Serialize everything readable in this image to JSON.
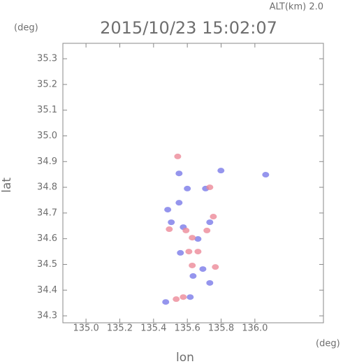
{
  "chart_data": {
    "type": "scatter",
    "title": "2015/10/23 15:02:07",
    "subtitle": "ALT(km) 2.0",
    "x_unit": "(deg)",
    "y_unit": "(deg)",
    "xlabel": "lon",
    "ylabel": "lat",
    "xlim": [
      134.863,
      136.406
    ],
    "ylim": [
      34.273,
      35.36
    ],
    "xticks": [
      {
        "value": 135.0,
        "label": "135.0"
      },
      135.2,
      135.4,
      135.6,
      135.8,
      {
        "value": 136.0,
        "label": "136.0"
      }
    ],
    "yticks": [
      35.3,
      35.2,
      35.1,
      {
        "value": 35.0,
        "label": "35.0"
      },
      34.9,
      34.8,
      34.7,
      34.6,
      34.5,
      34.4,
      34.3
    ],
    "series": [
      {
        "color": "#7a7ae8",
        "x": [
          135.551,
          135.6,
          135.708,
          135.799,
          135.484,
          135.505,
          135.576,
          135.733,
          135.663,
          135.559,
          135.692,
          135.733,
          135.634,
          136.064,
          135.472,
          135.617,
          135.551
        ],
        "values": [
          34.854,
          34.795,
          34.795,
          34.865,
          34.713,
          34.664,
          34.645,
          34.664,
          34.599,
          34.545,
          34.482,
          34.428,
          34.455,
          34.849,
          34.354,
          34.373,
          34.74
        ]
      },
      {
        "color": "#ec8a98",
        "x": [
          135.543,
          135.592,
          135.493,
          135.629,
          135.716,
          135.609,
          135.629,
          135.766,
          135.576,
          135.534,
          135.663,
          135.733,
          135.754
        ],
        "values": [
          34.92,
          34.632,
          34.637,
          34.604,
          34.632,
          34.55,
          34.496,
          34.49,
          34.373,
          34.365,
          34.55,
          34.8,
          34.686
        ]
      }
    ]
  }
}
